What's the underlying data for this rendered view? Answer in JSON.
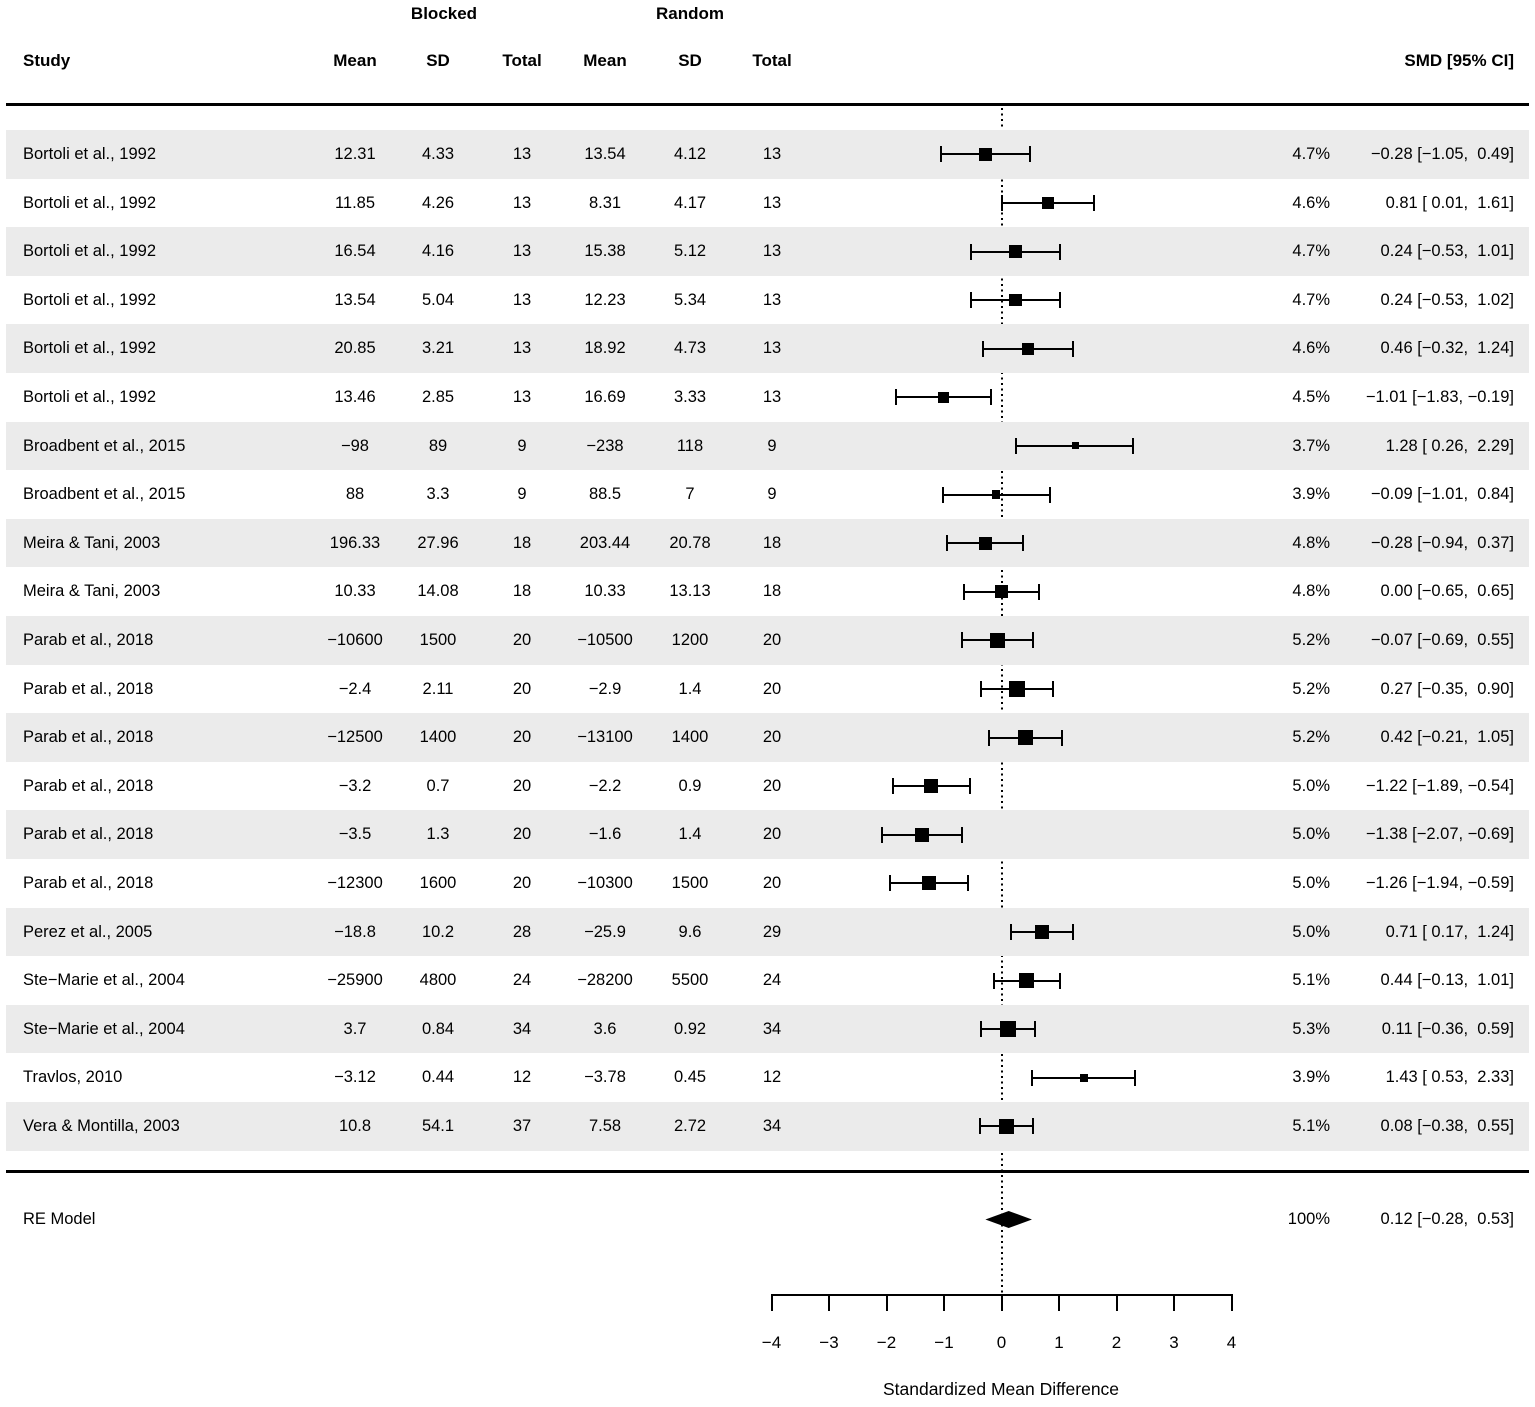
{
  "header": {
    "group1": "Blocked",
    "group2": "Random",
    "study_col": "Study",
    "subcols": [
      "Mean",
      "SD",
      "Total",
      "Mean",
      "SD",
      "Total"
    ],
    "smd_col": "SMD [95% CI]"
  },
  "chart_data": {
    "type": "scatter",
    "subtype": "forest-plot",
    "title": "",
    "xlabel": "Standardized Mean Difference",
    "xlim": [
      -4,
      4
    ],
    "x_ticks": [
      -4,
      -3,
      -2,
      -1,
      0,
      1,
      2,
      3,
      4
    ],
    "x_tick_labels": [
      "−4",
      "−3",
      "−2",
      "−1",
      "0",
      "1",
      "2",
      "3",
      "4"
    ],
    "zero_reference_line": 0,
    "grid": false,
    "rows": [
      {
        "study": "Bortoli et al., 1992",
        "blocked": {
          "mean": "12.31",
          "sd": "4.33",
          "total": "13"
        },
        "random": {
          "mean": "13.54",
          "sd": "4.12",
          "total": "13"
        },
        "weight": "4.7%",
        "weight_value": 4.7,
        "smd_label": "−0.28 [−1.05,  0.49]",
        "est": -0.28,
        "lo": -1.05,
        "hi": 0.49
      },
      {
        "study": "Bortoli et al., 1992",
        "blocked": {
          "mean": "11.85",
          "sd": "4.26",
          "total": "13"
        },
        "random": {
          "mean": "8.31",
          "sd": "4.17",
          "total": "13"
        },
        "weight": "4.6%",
        "weight_value": 4.6,
        "smd_label": "0.81 [ 0.01,  1.61]",
        "est": 0.81,
        "lo": 0.01,
        "hi": 1.61
      },
      {
        "study": "Bortoli et al., 1992",
        "blocked": {
          "mean": "16.54",
          "sd": "4.16",
          "total": "13"
        },
        "random": {
          "mean": "15.38",
          "sd": "5.12",
          "total": "13"
        },
        "weight": "4.7%",
        "weight_value": 4.7,
        "smd_label": "0.24 [−0.53,  1.01]",
        "est": 0.24,
        "lo": -0.53,
        "hi": 1.01
      },
      {
        "study": "Bortoli et al., 1992",
        "blocked": {
          "mean": "13.54",
          "sd": "5.04",
          "total": "13"
        },
        "random": {
          "mean": "12.23",
          "sd": "5.34",
          "total": "13"
        },
        "weight": "4.7%",
        "weight_value": 4.7,
        "smd_label": "0.24 [−0.53,  1.02]",
        "est": 0.24,
        "lo": -0.53,
        "hi": 1.02
      },
      {
        "study": "Bortoli et al., 1992",
        "blocked": {
          "mean": "20.85",
          "sd": "3.21",
          "total": "13"
        },
        "random": {
          "mean": "18.92",
          "sd": "4.73",
          "total": "13"
        },
        "weight": "4.6%",
        "weight_value": 4.6,
        "smd_label": "0.46 [−0.32,  1.24]",
        "est": 0.46,
        "lo": -0.32,
        "hi": 1.24
      },
      {
        "study": "Bortoli et al., 1992",
        "blocked": {
          "mean": "13.46",
          "sd": "2.85",
          "total": "13"
        },
        "random": {
          "mean": "16.69",
          "sd": "3.33",
          "total": "13"
        },
        "weight": "4.5%",
        "weight_value": 4.5,
        "smd_label": "−1.01 [−1.83, −0.19]",
        "est": -1.01,
        "lo": -1.83,
        "hi": -0.19
      },
      {
        "study": "Broadbent et al., 2015",
        "blocked": {
          "mean": "−98",
          "sd": "89",
          "total": "9"
        },
        "random": {
          "mean": "−238",
          "sd": "118",
          "total": "9"
        },
        "weight": "3.7%",
        "weight_value": 3.7,
        "smd_label": "1.28 [ 0.26,  2.29]",
        "est": 1.28,
        "lo": 0.26,
        "hi": 2.29
      },
      {
        "study": "Broadbent et al., 2015",
        "blocked": {
          "mean": "88",
          "sd": "3.3",
          "total": "9"
        },
        "random": {
          "mean": "88.5",
          "sd": "7",
          "total": "9"
        },
        "weight": "3.9%",
        "weight_value": 3.9,
        "smd_label": "−0.09 [−1.01,  0.84]",
        "est": -0.09,
        "lo": -1.01,
        "hi": 0.84
      },
      {
        "study": "Meira & Tani, 2003",
        "blocked": {
          "mean": "196.33",
          "sd": "27.96",
          "total": "18"
        },
        "random": {
          "mean": "203.44",
          "sd": "20.78",
          "total": "18"
        },
        "weight": "4.8%",
        "weight_value": 4.8,
        "smd_label": "−0.28 [−0.94,  0.37]",
        "est": -0.28,
        "lo": -0.94,
        "hi": 0.37
      },
      {
        "study": "Meira & Tani, 2003",
        "blocked": {
          "mean": "10.33",
          "sd": "14.08",
          "total": "18"
        },
        "random": {
          "mean": "10.33",
          "sd": "13.13",
          "total": "18"
        },
        "weight": "4.8%",
        "weight_value": 4.8,
        "smd_label": "0.00 [−0.65,  0.65]",
        "est": 0.0,
        "lo": -0.65,
        "hi": 0.65
      },
      {
        "study": "Parab et al., 2018",
        "blocked": {
          "mean": "−10600",
          "sd": "1500",
          "total": "20"
        },
        "random": {
          "mean": "−10500",
          "sd": "1200",
          "total": "20"
        },
        "weight": "5.2%",
        "weight_value": 5.2,
        "smd_label": "−0.07 [−0.69,  0.55]",
        "est": -0.07,
        "lo": -0.69,
        "hi": 0.55
      },
      {
        "study": "Parab et al., 2018",
        "blocked": {
          "mean": "−2.4",
          "sd": "2.11",
          "total": "20"
        },
        "random": {
          "mean": "−2.9",
          "sd": "1.4",
          "total": "20"
        },
        "weight": "5.2%",
        "weight_value": 5.2,
        "smd_label": "0.27 [−0.35,  0.90]",
        "est": 0.27,
        "lo": -0.35,
        "hi": 0.9
      },
      {
        "study": "Parab et al., 2018",
        "blocked": {
          "mean": "−12500",
          "sd": "1400",
          "total": "20"
        },
        "random": {
          "mean": "−13100",
          "sd": "1400",
          "total": "20"
        },
        "weight": "5.2%",
        "weight_value": 5.2,
        "smd_label": "0.42 [−0.21,  1.05]",
        "est": 0.42,
        "lo": -0.21,
        "hi": 1.05
      },
      {
        "study": "Parab et al., 2018",
        "blocked": {
          "mean": "−3.2",
          "sd": "0.7",
          "total": "20"
        },
        "random": {
          "mean": "−2.2",
          "sd": "0.9",
          "total": "20"
        },
        "weight": "5.0%",
        "weight_value": 5.0,
        "smd_label": "−1.22 [−1.89, −0.54]",
        "est": -1.22,
        "lo": -1.89,
        "hi": -0.54
      },
      {
        "study": "Parab et al., 2018",
        "blocked": {
          "mean": "−3.5",
          "sd": "1.3",
          "total": "20"
        },
        "random": {
          "mean": "−1.6",
          "sd": "1.4",
          "total": "20"
        },
        "weight": "5.0%",
        "weight_value": 5.0,
        "smd_label": "−1.38 [−2.07, −0.69]",
        "est": -1.38,
        "lo": -2.07,
        "hi": -0.69
      },
      {
        "study": "Parab et al., 2018",
        "blocked": {
          "mean": "−12300",
          "sd": "1600",
          "total": "20"
        },
        "random": {
          "mean": "−10300",
          "sd": "1500",
          "total": "20"
        },
        "weight": "5.0%",
        "weight_value": 5.0,
        "smd_label": "−1.26 [−1.94, −0.59]",
        "est": -1.26,
        "lo": -1.94,
        "hi": -0.59
      },
      {
        "study": "Perez et al., 2005",
        "blocked": {
          "mean": "−18.8",
          "sd": "10.2",
          "total": "28"
        },
        "random": {
          "mean": "−25.9",
          "sd": "9.6",
          "total": "29"
        },
        "weight": "5.0%",
        "weight_value": 5.0,
        "smd_label": "0.71 [ 0.17,  1.24]",
        "est": 0.71,
        "lo": 0.17,
        "hi": 1.24
      },
      {
        "study": "Ste−Marie et al., 2004",
        "blocked": {
          "mean": "−25900",
          "sd": "4800",
          "total": "24"
        },
        "random": {
          "mean": "−28200",
          "sd": "5500",
          "total": "24"
        },
        "weight": "5.1%",
        "weight_value": 5.1,
        "smd_label": "0.44 [−0.13,  1.01]",
        "est": 0.44,
        "lo": -0.13,
        "hi": 1.01
      },
      {
        "study": "Ste−Marie et al., 2004",
        "blocked": {
          "mean": "3.7",
          "sd": "0.84",
          "total": "34"
        },
        "random": {
          "mean": "3.6",
          "sd": "0.92",
          "total": "34"
        },
        "weight": "5.3%",
        "weight_value": 5.3,
        "smd_label": "0.11 [−0.36,  0.59]",
        "est": 0.11,
        "lo": -0.36,
        "hi": 0.59
      },
      {
        "study": "Travlos, 2010",
        "blocked": {
          "mean": "−3.12",
          "sd": "0.44",
          "total": "12"
        },
        "random": {
          "mean": "−3.78",
          "sd": "0.45",
          "total": "12"
        },
        "weight": "3.9%",
        "weight_value": 3.9,
        "smd_label": "1.43 [ 0.53,  2.33]",
        "est": 1.43,
        "lo": 0.53,
        "hi": 2.33
      },
      {
        "study": "Vera & Montilla, 2003",
        "blocked": {
          "mean": "10.8",
          "sd": "54.1",
          "total": "37"
        },
        "random": {
          "mean": "7.58",
          "sd": "2.72",
          "total": "34"
        },
        "weight": "5.1%",
        "weight_value": 5.1,
        "smd_label": "0.08 [−0.38,  0.55]",
        "est": 0.08,
        "lo": -0.38,
        "hi": 0.55
      }
    ],
    "summary": {
      "label": "RE Model",
      "weight": "100%",
      "smd_label": "0.12 [−0.28,  0.53]",
      "est": 0.12,
      "lo": -0.28,
      "hi": 0.53
    }
  },
  "colors": {
    "band_shaded": "#ebebeb",
    "ink": "#000000",
    "background": "#ffffff"
  }
}
